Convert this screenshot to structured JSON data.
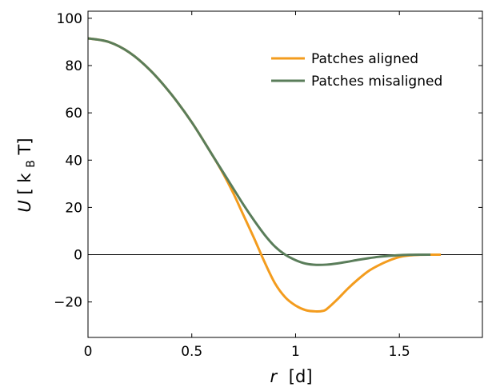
{
  "chart_data": {
    "type": "line",
    "xlabel": {
      "var": "r",
      "unit": "[d]"
    },
    "ylabel": {
      "var": "U",
      "bracket_open": "[",
      "unit_main": "k",
      "unit_sub": "B",
      "unit_tail": "T]"
    },
    "xlim": [
      0,
      1.9
    ],
    "ylim": [
      -35,
      103
    ],
    "x_ticks": [
      0,
      0.5,
      1,
      1.5
    ],
    "x_tick_labels": [
      "0",
      "0.5",
      "1",
      "1.5"
    ],
    "y_ticks": [
      -20,
      0,
      20,
      40,
      60,
      80,
      100
    ],
    "y_tick_labels": [
      "−20",
      "0",
      "20",
      "40",
      "60",
      "80",
      "100"
    ],
    "zero_line": true,
    "grid": false,
    "legend_position": "top-right",
    "series": [
      {
        "name": "Patches aligned",
        "color": "#f39c1e",
        "x": [
          0,
          0.1,
          0.2,
          0.3,
          0.4,
          0.5,
          0.6,
          0.65,
          0.7,
          0.75,
          0.8,
          0.85,
          0.9,
          0.95,
          1.0,
          1.05,
          1.1,
          1.13,
          1.15,
          1.2,
          1.25,
          1.3,
          1.35,
          1.4,
          1.45,
          1.5,
          1.55,
          1.6,
          1.65,
          1.7
        ],
        "y": [
          91.5,
          90,
          85.5,
          78,
          68,
          56,
          42,
          34.5,
          26,
          16.5,
          7,
          -3,
          -12,
          -18,
          -21.5,
          -23.5,
          -24,
          -23.8,
          -23,
          -19,
          -14.5,
          -10.5,
          -7,
          -4.5,
          -2.5,
          -1,
          -0.3,
          -0.05,
          0,
          0
        ]
      },
      {
        "name": "Patches misaligned",
        "color": "#5a7d5a",
        "x": [
          0,
          0.1,
          0.2,
          0.3,
          0.4,
          0.5,
          0.6,
          0.65,
          0.7,
          0.75,
          0.8,
          0.85,
          0.9,
          0.95,
          1.0,
          1.05,
          1.1,
          1.15,
          1.2,
          1.25,
          1.3,
          1.35,
          1.4,
          1.45,
          1.5,
          1.55,
          1.6,
          1.65
        ],
        "y": [
          91.5,
          90,
          85.5,
          78,
          68,
          56,
          42,
          35,
          28,
          21,
          14.5,
          8.5,
          3.5,
          0,
          -2.3,
          -3.8,
          -4.3,
          -4.2,
          -3.7,
          -3,
          -2.2,
          -1.5,
          -0.9,
          -0.5,
          -0.2,
          -0.05,
          0,
          0
        ]
      }
    ]
  }
}
